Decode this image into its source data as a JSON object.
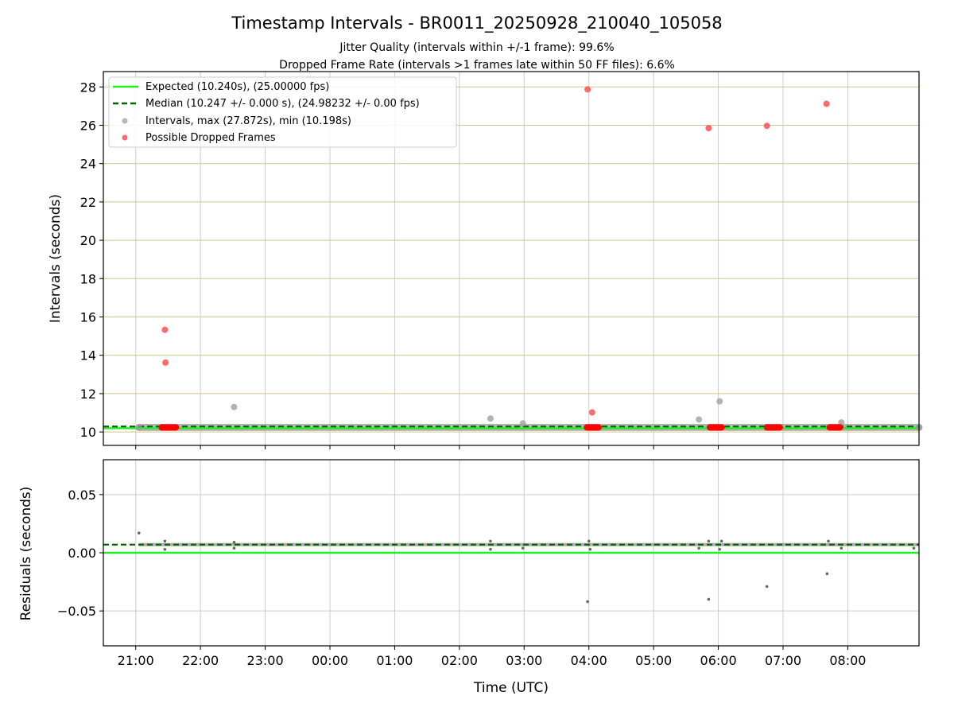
{
  "chart_data": [
    {
      "type": "scatter",
      "title": "Timestamp Intervals - BR0011_20250928_210040_105058",
      "subtitle_lines": [
        "Jitter Quality (intervals within +/-1 frame): 99.6%",
        "Dropped Frame Rate (intervals >1 frames late within 50 FF files): 6.6%"
      ],
      "xlabel": "",
      "ylabel": "Intervals (seconds)",
      "xlim": [
        -0.5,
        12.1
      ],
      "ylim": [
        9.3,
        28.8
      ],
      "yticks": [
        10,
        12,
        14,
        16,
        18,
        20,
        22,
        24,
        26,
        28
      ],
      "ytick_labels": [
        "10",
        "12",
        "14",
        "16",
        "18",
        "20",
        "22",
        "24",
        "26",
        "28"
      ],
      "grid": true,
      "legend_position": "top-left",
      "legend": [
        "Expected (10.240s), (25.00000 fps)",
        "Median (10.247 +/- 0.000 s), (24.98232 +/- 0.00 fps)",
        "Intervals, max (27.872s), min (10.198s)",
        "Possible Dropped Frames"
      ],
      "series": [
        {
          "name": "Expected",
          "kind": "hline",
          "y": 10.24,
          "color": "#22ee22"
        },
        {
          "name": "Median",
          "kind": "hline",
          "y": 10.247,
          "color": "#006600",
          "dashed": true
        },
        {
          "name": "Intervals",
          "kind": "scatter",
          "color": "#999999",
          "points": [
            [
              0.05,
              10.24
            ],
            [
              12.1,
              10.24
            ],
            [
              1.52,
              11.3
            ],
            [
              5.48,
              10.7
            ],
            [
              5.98,
              10.45
            ],
            [
              8.7,
              10.65
            ],
            [
              9.02,
              11.6
            ],
            [
              10.9,
              10.5
            ]
          ]
        },
        {
          "name": "Possible Dropped Frames",
          "kind": "scatter",
          "color": "#ff5050",
          "points": [
            [
              0.45,
              15.33
            ],
            [
              0.46,
              13.62
            ],
            [
              6.98,
              27.87
            ],
            [
              7.05,
              11.02
            ],
            [
              8.85,
              25.85
            ],
            [
              9.75,
              25.97
            ],
            [
              10.67,
              27.12
            ]
          ]
        },
        {
          "name": "Possible Dropped Frames (clusters)",
          "kind": "cluster",
          "color": "#ff0000",
          "ranges": [
            [
              0.4,
              0.62
            ],
            [
              6.97,
              7.15
            ],
            [
              8.87,
              9.05
            ],
            [
              9.75,
              9.95
            ],
            [
              10.72,
              10.88
            ]
          ],
          "y": 10.24
        }
      ]
    },
    {
      "type": "scatter",
      "xlabel": "Time (UTC)",
      "ylabel": "Residuals (seconds)",
      "xlim": [
        -0.5,
        12.1
      ],
      "ylim": [
        -0.08,
        0.08
      ],
      "yticks": [
        -0.05,
        0.0,
        0.05
      ],
      "ytick_labels": [
        "−0.05",
        "0.00",
        "0.05"
      ],
      "xticks": [
        0,
        1,
        2,
        3,
        4,
        5,
        6,
        7,
        8,
        9,
        10,
        11
      ],
      "xtick_labels": [
        "21:00",
        "22:00",
        "23:00",
        "00:00",
        "01:00",
        "02:00",
        "03:00",
        "04:00",
        "05:00",
        "06:00",
        "07:00",
        "08:00"
      ],
      "grid": true,
      "series": [
        {
          "name": "Expected",
          "kind": "hline",
          "y": 0.0,
          "color": "#22ee22"
        },
        {
          "name": "Median",
          "kind": "hline",
          "y": 0.007,
          "color": "#006600",
          "dashed": true
        },
        {
          "name": "Residuals",
          "kind": "scatter",
          "color": "#666666",
          "points": [
            [
              0.05,
              0.017
            ],
            [
              0.45,
              0.003
            ],
            [
              0.45,
              0.01
            ],
            [
              1.52,
              0.004
            ],
            [
              1.52,
              0.009
            ],
            [
              5.48,
              0.003
            ],
            [
              5.48,
              0.01
            ],
            [
              5.98,
              0.004
            ],
            [
              6.98,
              -0.042
            ],
            [
              7.02,
              0.003
            ],
            [
              7.0,
              0.01
            ],
            [
              8.7,
              0.004
            ],
            [
              8.85,
              -0.04
            ],
            [
              8.85,
              0.01
            ],
            [
              9.02,
              0.003
            ],
            [
              9.05,
              0.01
            ],
            [
              9.75,
              -0.029
            ],
            [
              10.68,
              -0.018
            ],
            [
              10.7,
              0.01
            ],
            [
              10.9,
              0.004
            ],
            [
              12.02,
              0.004
            ]
          ]
        }
      ]
    }
  ]
}
